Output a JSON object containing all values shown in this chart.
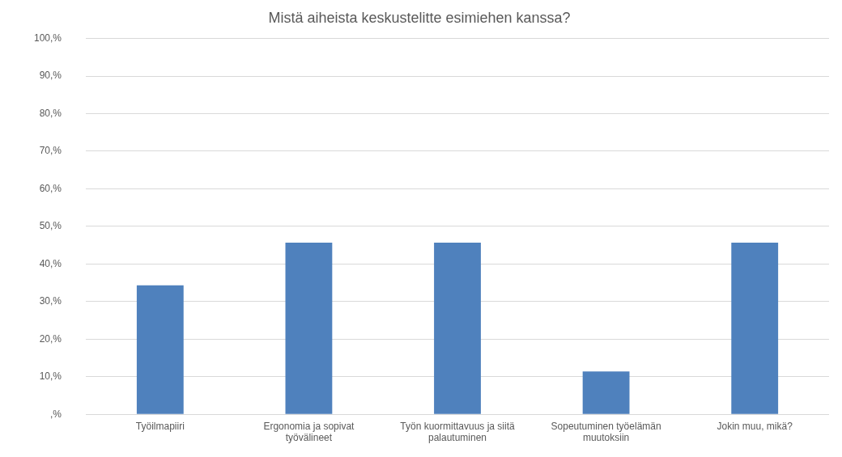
{
  "chart_data": {
    "type": "bar",
    "title": "Mistä aiheista keskustelitte esimiehen kanssa?",
    "categories": [
      "Työilmapiiri",
      "Ergonomia ja sopivat työvälineet",
      "Työn kuormittavuus ja siitä palautuminen",
      "Sopeutuminen työelämän muutoksiin",
      "Jokin muu, mikä?"
    ],
    "values": [
      34.3,
      45.7,
      45.7,
      11.4,
      45.7
    ],
    "color": "#4f81bd",
    "ylim": [
      0,
      100
    ],
    "yticks": [
      {
        "value": 0,
        "label": ",%"
      },
      {
        "value": 10,
        "label": "10,%"
      },
      {
        "value": 20,
        "label": "20,%"
      },
      {
        "value": 30,
        "label": "30,%"
      },
      {
        "value": 40,
        "label": "40,%"
      },
      {
        "value": 50,
        "label": "50,%"
      },
      {
        "value": 60,
        "label": "60,%"
      },
      {
        "value": 70,
        "label": "70,%"
      },
      {
        "value": 80,
        "label": "80,%"
      },
      {
        "value": 90,
        "label": "90,%"
      },
      {
        "value": 100,
        "label": "100,%"
      }
    ],
    "grid": "y"
  }
}
